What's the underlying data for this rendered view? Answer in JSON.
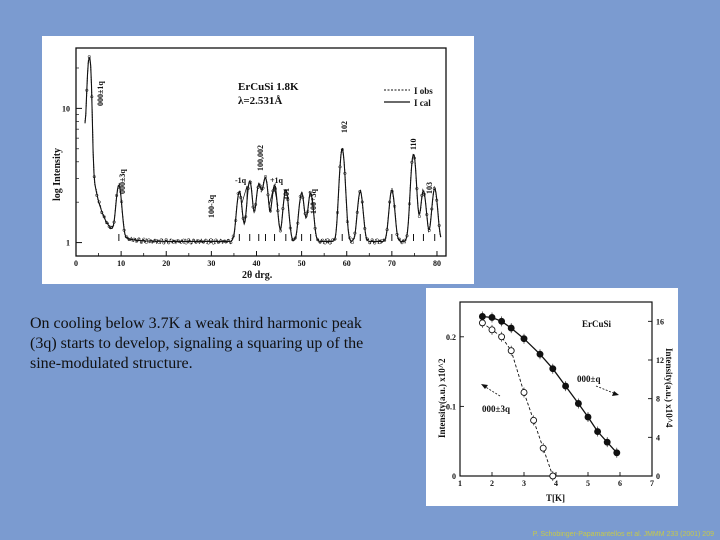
{
  "slide_text": "On cooling below 3.7K a weak third harmonic peak (3q) starts to develop, signaling a squaring up of the sine-modulated structure.",
  "citation": "P. Schobinger-Papamantellos et al. JMMM 233 (2001) 209",
  "colors": {
    "background": "#7b9bd0",
    "panel": "#ffffff",
    "ink": "#111111",
    "citation": "#c7c94a"
  },
  "chart_data": [
    {
      "type": "line",
      "title": "ErCuSi  1.8K",
      "subtitle": "λ=2.531Å",
      "xlabel": "2θ drg.",
      "ylabel": "log Intensity",
      "x_ticks": [
        "0",
        "10",
        "20",
        "30",
        "40",
        "50",
        "60",
        "70",
        "80"
      ],
      "y_ticks": [
        "10",
        "1"
      ],
      "xlim": [
        0,
        82
      ],
      "y_scale": "log",
      "legend": [
        "I obs",
        "I cal"
      ],
      "legend_position": "top-right",
      "annotations": [
        "000±1q",
        "000±3q",
        "100-3q",
        "-1q",
        "100,002",
        "+1q",
        "101",
        "100+3q",
        "102",
        "110",
        "103"
      ],
      "peaks": [
        {
          "x": 2.7,
          "log_i": 1.12
        },
        {
          "x": 3.2,
          "log_i": 1.18
        },
        {
          "x": 9.5,
          "log_i": 0.19
        },
        {
          "x": 36.2,
          "log_i": 0.14
        },
        {
          "x": 38.5,
          "log_i": 0.27
        },
        {
          "x": 40.5,
          "log_i": 0.22
        },
        {
          "x": 42.0,
          "log_i": 0.3
        },
        {
          "x": 44.0,
          "log_i": 0.22
        },
        {
          "x": 46.5,
          "log_i": 0.16
        },
        {
          "x": 50.0,
          "log_i": 0.12
        },
        {
          "x": 52.0,
          "log_i": 0.12
        },
        {
          "x": 59.0,
          "log_i": 0.6
        },
        {
          "x": 63.0,
          "log_i": 0.14
        },
        {
          "x": 70.0,
          "log_i": 0.16
        },
        {
          "x": 74.8,
          "log_i": 0.55
        },
        {
          "x": 77.0,
          "log_i": 0.15
        },
        {
          "x": 79.5,
          "log_i": 0.18
        }
      ]
    },
    {
      "type": "scatter",
      "title": "ErCuSi",
      "xlabel": "T[K]",
      "ylabel_left": "Intensity(a.u.)  x10^2",
      "ylabel_right": "Intensity(a.u.)  x10^4",
      "x_ticks": [
        "1",
        "2",
        "3",
        "4",
        "5",
        "6",
        "7"
      ],
      "y_ticks_left": [
        "0",
        "0.1",
        "0.2"
      ],
      "y_ticks_right": [
        "0",
        "4",
        "8",
        "12",
        "16"
      ],
      "xlim": [
        1,
        7
      ],
      "ylim_left": [
        0,
        0.25
      ],
      "ylim_right": [
        0,
        18
      ],
      "series": [
        {
          "name": "000±q",
          "axis": "right",
          "marker": "filled",
          "x": [
            1.7,
            2.0,
            2.3,
            2.6,
            3.0,
            3.5,
            3.9,
            4.3,
            4.7,
            5.0,
            5.3,
            5.6,
            5.9
          ],
          "y": [
            16.5,
            16.4,
            16.0,
            15.3,
            14.2,
            12.6,
            11.1,
            9.3,
            7.5,
            6.1,
            4.6,
            3.5,
            2.4
          ]
        },
        {
          "name": "000±3q",
          "axis": "left",
          "marker": "open",
          "x": [
            1.7,
            2.0,
            2.3,
            2.6,
            3.0,
            3.3,
            3.6,
            3.9
          ],
          "y": [
            0.22,
            0.21,
            0.2,
            0.18,
            0.12,
            0.08,
            0.04,
            0.0
          ]
        }
      ]
    }
  ]
}
